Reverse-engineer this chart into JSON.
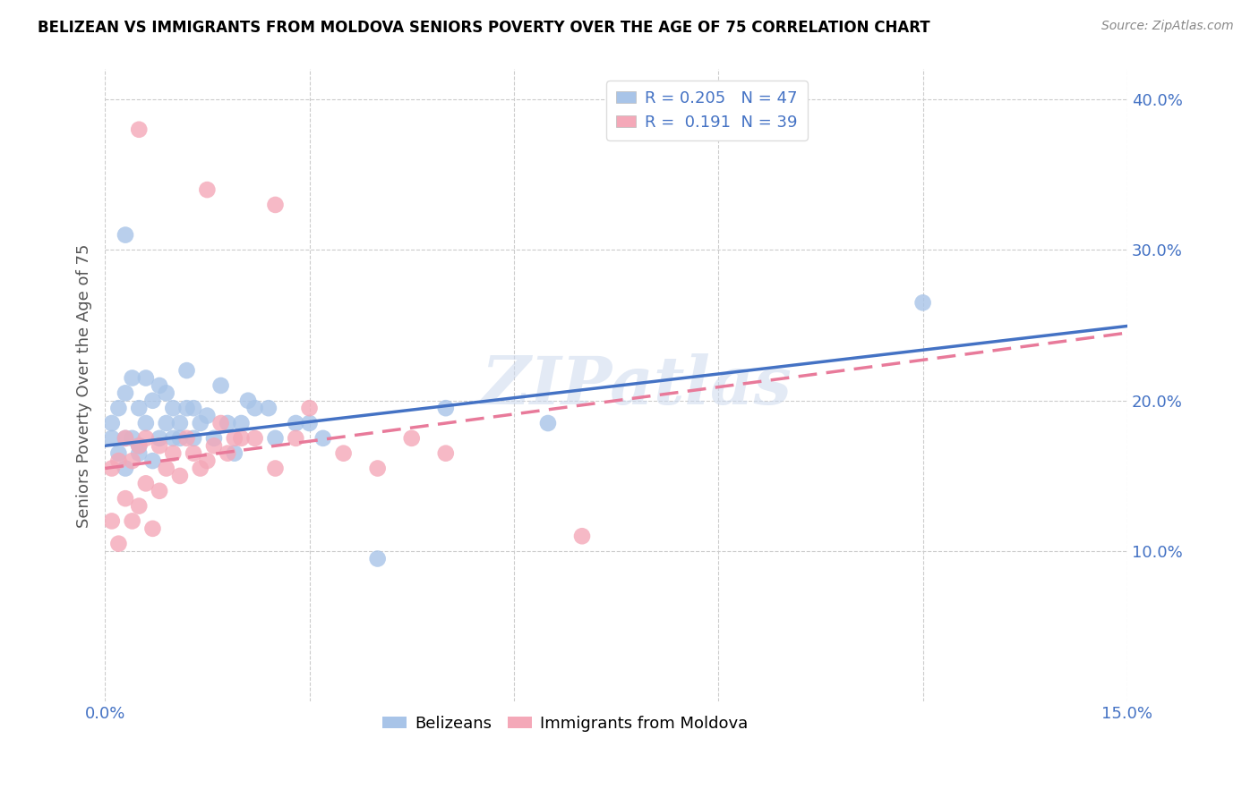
{
  "title": "BELIZEAN VS IMMIGRANTS FROM MOLDOVA SENIORS POVERTY OVER THE AGE OF 75 CORRELATION CHART",
  "source": "Source: ZipAtlas.com",
  "ylabel": "Seniors Poverty Over the Age of 75",
  "x_min": 0.0,
  "x_max": 0.15,
  "y_min": 0.0,
  "y_max": 0.42,
  "belizean_color": "#a8c4e8",
  "moldova_color": "#f4a8b8",
  "belizean_line_color": "#4472c4",
  "moldova_line_color": "#e87a9a",
  "legend_r_belizean": "R = 0.205",
  "legend_n_belizean": "N = 47",
  "legend_r_moldova": "R =  0.191",
  "legend_n_moldova": "N = 39",
  "watermark": "ZIPatlas",
  "belize_intercept": 0.17,
  "belize_slope": 0.53,
  "moldova_intercept": 0.155,
  "moldova_slope": 0.6,
  "belizean_x": [
    0.001,
    0.001,
    0.002,
    0.002,
    0.003,
    0.003,
    0.003,
    0.004,
    0.004,
    0.005,
    0.005,
    0.005,
    0.006,
    0.006,
    0.007,
    0.007,
    0.008,
    0.008,
    0.009,
    0.009,
    0.01,
    0.01,
    0.011,
    0.011,
    0.012,
    0.012,
    0.013,
    0.013,
    0.014,
    0.015,
    0.016,
    0.017,
    0.018,
    0.019,
    0.02,
    0.021,
    0.022,
    0.024,
    0.025,
    0.028,
    0.03,
    0.032,
    0.04,
    0.05,
    0.065,
    0.12,
    0.003
  ],
  "belizean_y": [
    0.175,
    0.185,
    0.165,
    0.195,
    0.175,
    0.205,
    0.155,
    0.175,
    0.215,
    0.165,
    0.195,
    0.17,
    0.185,
    0.215,
    0.16,
    0.2,
    0.175,
    0.21,
    0.185,
    0.205,
    0.175,
    0.195,
    0.185,
    0.175,
    0.195,
    0.22,
    0.195,
    0.175,
    0.185,
    0.19,
    0.175,
    0.21,
    0.185,
    0.165,
    0.185,
    0.2,
    0.195,
    0.195,
    0.175,
    0.185,
    0.185,
    0.175,
    0.095,
    0.195,
    0.185,
    0.265,
    0.31
  ],
  "moldova_x": [
    0.001,
    0.001,
    0.002,
    0.002,
    0.003,
    0.003,
    0.004,
    0.004,
    0.005,
    0.005,
    0.006,
    0.006,
    0.007,
    0.008,
    0.008,
    0.009,
    0.01,
    0.011,
    0.012,
    0.013,
    0.014,
    0.015,
    0.016,
    0.017,
    0.018,
    0.019,
    0.02,
    0.022,
    0.025,
    0.028,
    0.03,
    0.035,
    0.04,
    0.045,
    0.05,
    0.005,
    0.015,
    0.025,
    0.07
  ],
  "moldova_y": [
    0.12,
    0.155,
    0.105,
    0.16,
    0.135,
    0.175,
    0.12,
    0.16,
    0.13,
    0.17,
    0.145,
    0.175,
    0.115,
    0.14,
    0.17,
    0.155,
    0.165,
    0.15,
    0.175,
    0.165,
    0.155,
    0.16,
    0.17,
    0.185,
    0.165,
    0.175,
    0.175,
    0.175,
    0.155,
    0.175,
    0.195,
    0.165,
    0.155,
    0.175,
    0.165,
    0.38,
    0.34,
    0.33,
    0.11
  ]
}
